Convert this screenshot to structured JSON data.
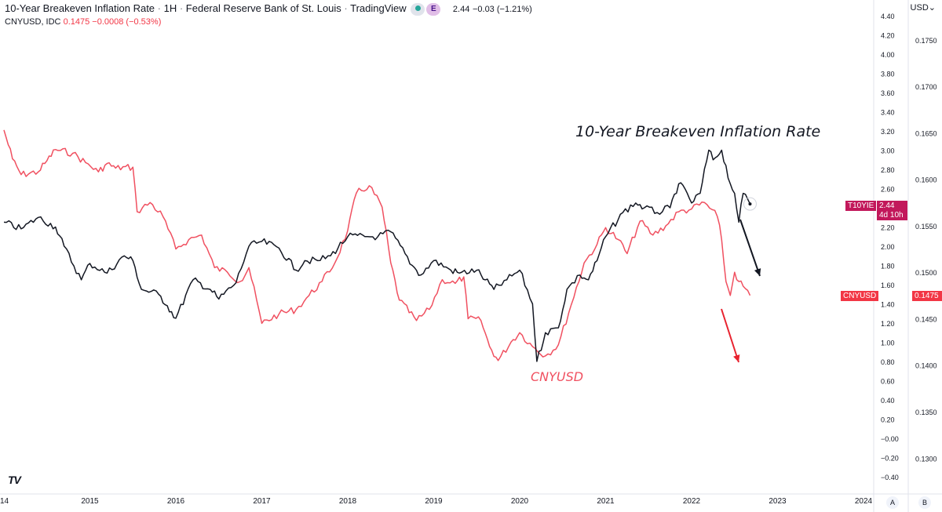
{
  "header": {
    "title": "10-Year Breakeven Inflation Rate",
    "interval": "1H",
    "source": "Federal Reserve Bank of St. Louis",
    "platform": "TradingView",
    "badge": "E",
    "main_value": "2.44",
    "main_change": "−0.03 (−1.21%)",
    "overlay_symbol": "CNYUSD, IDC",
    "overlay_value": "0.1475",
    "overlay_change": "−0.0008 (−0.53%)"
  },
  "currency_menu": "USD",
  "tags": {
    "t10yie_symbol": "T10YIE",
    "t10yie_value": "2.44",
    "t10yie_countdown": "4d 10h",
    "cnyusd_symbol": "CNYUSD",
    "cnyusd_value": "0.1475"
  },
  "annotations": {
    "breakeven_label": "10-Year Breakeven Inflation Rate",
    "cnyusd_label": "CNYUSD"
  },
  "footer": {
    "logo": "TV",
    "axis_buttons": [
      "A",
      "B"
    ]
  },
  "colors": {
    "breakeven": "#131722",
    "cnyusd": "#f05060",
    "tag_t10yie": "#c2185b",
    "tag_cnyusd": "#f23645",
    "arrow_black": "#131722",
    "arrow_red": "#e8232f"
  },
  "chart_data": {
    "type": "line",
    "x_ticks": [
      "14",
      "2015",
      "2016",
      "2017",
      "2018",
      "2019",
      "2020",
      "2021",
      "2022",
      "2023",
      "2024"
    ],
    "left_axis": {
      "ticks": [
        "4.40",
        "4.20",
        "4.00",
        "3.80",
        "3.60",
        "3.40",
        "3.20",
        "3.00",
        "2.80",
        "2.60",
        "2.40",
        "2.20",
        "2.00",
        "1.80",
        "1.60",
        "1.40",
        "1.20",
        "1.00",
        "0.80",
        "0.60",
        "0.40",
        "0.20",
        "−0.00",
        "−0.20",
        "−0.40"
      ],
      "range": [
        -0.4,
        4.4
      ]
    },
    "right_axis": {
      "ticks": [
        "0.1750",
        "0.1700",
        "0.1650",
        "0.1600",
        "0.1550",
        "0.1500",
        "0.1450",
        "0.1400",
        "0.1350",
        "0.1300"
      ],
      "range": [
        0.128,
        0.1776
      ]
    },
    "series": [
      {
        "name": "T10YIE",
        "axis": "left",
        "points": [
          [
            2014.0,
            2.25
          ],
          [
            2014.2,
            2.18
          ],
          [
            2014.4,
            2.3
          ],
          [
            2014.6,
            2.2
          ],
          [
            2014.7,
            2.0
          ],
          [
            2014.9,
            1.65
          ],
          [
            2015.0,
            1.82
          ],
          [
            2015.2,
            1.72
          ],
          [
            2015.4,
            1.9
          ],
          [
            2015.5,
            1.85
          ],
          [
            2015.6,
            1.55
          ],
          [
            2015.8,
            1.5
          ],
          [
            2015.9,
            1.38
          ],
          [
            2016.0,
            1.25
          ],
          [
            2016.2,
            1.65
          ],
          [
            2016.4,
            1.55
          ],
          [
            2016.5,
            1.45
          ],
          [
            2016.7,
            1.62
          ],
          [
            2016.85,
            2.0
          ],
          [
            2017.0,
            2.05
          ],
          [
            2017.2,
            1.98
          ],
          [
            2017.4,
            1.75
          ],
          [
            2017.5,
            1.85
          ],
          [
            2017.65,
            1.85
          ],
          [
            2017.8,
            1.9
          ],
          [
            2018.0,
            2.1
          ],
          [
            2018.2,
            2.1
          ],
          [
            2018.35,
            2.1
          ],
          [
            2018.5,
            2.15
          ],
          [
            2018.75,
            1.8
          ],
          [
            2018.85,
            1.7
          ],
          [
            2019.0,
            1.85
          ],
          [
            2019.2,
            1.75
          ],
          [
            2019.3,
            1.72
          ],
          [
            2019.5,
            1.75
          ],
          [
            2019.6,
            1.65
          ],
          [
            2019.7,
            1.55
          ],
          [
            2019.85,
            1.65
          ],
          [
            2020.0,
            1.75
          ],
          [
            2020.15,
            1.4
          ],
          [
            2020.2,
            0.8
          ],
          [
            2020.3,
            1.1
          ],
          [
            2020.45,
            1.15
          ],
          [
            2020.55,
            1.55
          ],
          [
            2020.7,
            1.7
          ],
          [
            2020.8,
            1.65
          ],
          [
            2020.9,
            1.85
          ],
          [
            2021.0,
            2.1
          ],
          [
            2021.2,
            2.35
          ],
          [
            2021.35,
            2.45
          ],
          [
            2021.45,
            2.4
          ],
          [
            2021.6,
            2.35
          ],
          [
            2021.75,
            2.4
          ],
          [
            2021.85,
            2.65
          ],
          [
            2021.95,
            2.55
          ],
          [
            2022.0,
            2.45
          ],
          [
            2022.1,
            2.55
          ],
          [
            2022.2,
            3.0
          ],
          [
            2022.25,
            2.9
          ],
          [
            2022.35,
            3.0
          ],
          [
            2022.45,
            2.65
          ],
          [
            2022.5,
            2.55
          ],
          [
            2022.55,
            2.25
          ],
          [
            2022.6,
            2.55
          ],
          [
            2022.68,
            2.44
          ]
        ]
      },
      {
        "name": "CNYUSD",
        "axis": "right",
        "points": [
          [
            2014.0,
            0.1653
          ],
          [
            2014.1,
            0.1622
          ],
          [
            2014.2,
            0.1605
          ],
          [
            2014.4,
            0.1608
          ],
          [
            2014.5,
            0.162
          ],
          [
            2014.6,
            0.1632
          ],
          [
            2014.8,
            0.1628
          ],
          [
            2014.95,
            0.1618
          ],
          [
            2015.1,
            0.1608
          ],
          [
            2015.2,
            0.1617
          ],
          [
            2015.3,
            0.1612
          ],
          [
            2015.5,
            0.1613
          ],
          [
            2015.55,
            0.1565
          ],
          [
            2015.7,
            0.1575
          ],
          [
            2015.85,
            0.156
          ],
          [
            2016.0,
            0.1525
          ],
          [
            2016.15,
            0.1535
          ],
          [
            2016.3,
            0.154
          ],
          [
            2016.45,
            0.1505
          ],
          [
            2016.6,
            0.15
          ],
          [
            2016.75,
            0.149
          ],
          [
            2016.85,
            0.1505
          ],
          [
            2017.0,
            0.1445
          ],
          [
            2017.2,
            0.1455
          ],
          [
            2017.4,
            0.146
          ],
          [
            2017.55,
            0.1475
          ],
          [
            2017.7,
            0.149
          ],
          [
            2017.85,
            0.151
          ],
          [
            2018.0,
            0.1545
          ],
          [
            2018.1,
            0.1585
          ],
          [
            2018.25,
            0.1593
          ],
          [
            2018.4,
            0.157
          ],
          [
            2018.5,
            0.151
          ],
          [
            2018.6,
            0.147
          ],
          [
            2018.8,
            0.1448
          ],
          [
            2018.95,
            0.146
          ],
          [
            2019.1,
            0.1492
          ],
          [
            2019.25,
            0.1488
          ],
          [
            2019.35,
            0.1495
          ],
          [
            2019.4,
            0.145
          ],
          [
            2019.55,
            0.1448
          ],
          [
            2019.65,
            0.142
          ],
          [
            2019.75,
            0.1405
          ],
          [
            2019.9,
            0.1425
          ],
          [
            2020.0,
            0.1435
          ],
          [
            2020.15,
            0.142
          ],
          [
            2020.3,
            0.141
          ],
          [
            2020.45,
            0.1422
          ],
          [
            2020.6,
            0.1465
          ],
          [
            2020.75,
            0.151
          ],
          [
            2020.9,
            0.153
          ],
          [
            2021.0,
            0.1548
          ],
          [
            2021.15,
            0.1535
          ],
          [
            2021.25,
            0.152
          ],
          [
            2021.4,
            0.1555
          ],
          [
            2021.55,
            0.154
          ],
          [
            2021.7,
            0.155
          ],
          [
            2021.85,
            0.1565
          ],
          [
            2022.0,
            0.1568
          ],
          [
            2022.15,
            0.1575
          ],
          [
            2022.3,
            0.156
          ],
          [
            2022.35,
            0.1535
          ],
          [
            2022.4,
            0.149
          ],
          [
            2022.45,
            0.1475
          ],
          [
            2022.5,
            0.15
          ],
          [
            2022.55,
            0.149
          ],
          [
            2022.6,
            0.1485
          ],
          [
            2022.68,
            0.1475
          ]
        ]
      }
    ],
    "grid": false,
    "legend": "top-left"
  }
}
